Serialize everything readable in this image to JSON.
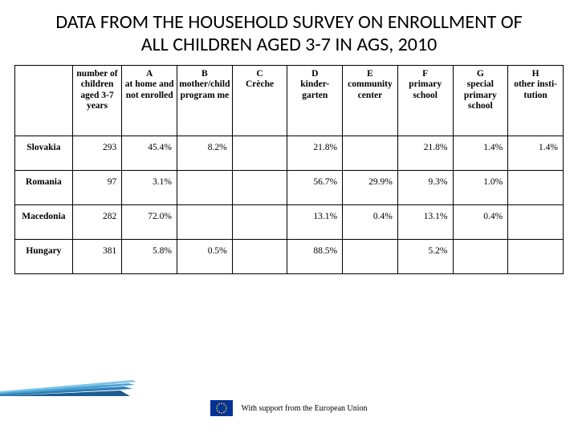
{
  "title": "DATA FROM THE HOUSEHOLD SURVEY ON ENROLLMENT OF ALL CHILDREN AGED 3-7 IN AGS, 2010",
  "headers": [
    "",
    "number of children aged 3-7 years",
    "A\nat home and not enrolled",
    "B\nmother/child program me",
    "C\nCrèche",
    "D\nkinder-garten",
    "E\ncommunity center",
    "F\nprimary school",
    "G\nspecial primary school",
    "H\nother insti-tution"
  ],
  "rows": [
    {
      "country": "Slovakia",
      "cells": [
        "293",
        "45.4%",
        "8.2%",
        "",
        "21.8%",
        "",
        "21.8%",
        "1.4%",
        "1.4%"
      ]
    },
    {
      "country": "Romania",
      "cells": [
        "97",
        "3.1%",
        "",
        "",
        "56.7%",
        "29.9%",
        "9.3%",
        "1.0%",
        ""
      ]
    },
    {
      "country": "Macedonia",
      "cells": [
        "282",
        "72.0%",
        "",
        "",
        "13.1%",
        "0.4%",
        "13.1%",
        "0.4%",
        ""
      ]
    },
    {
      "country": "Hungary",
      "cells": [
        "381",
        "5.8%",
        "0.5%",
        "",
        "88.5%",
        "",
        "5.2%",
        "",
        ""
      ]
    }
  ],
  "footer": "With support from the European Union",
  "flag": {
    "bg": "#003399",
    "star": "#ffcc00"
  },
  "accent_colors": [
    "#7bc4e8",
    "#4aa0d0",
    "#2e7db5",
    "#1d5e91"
  ]
}
